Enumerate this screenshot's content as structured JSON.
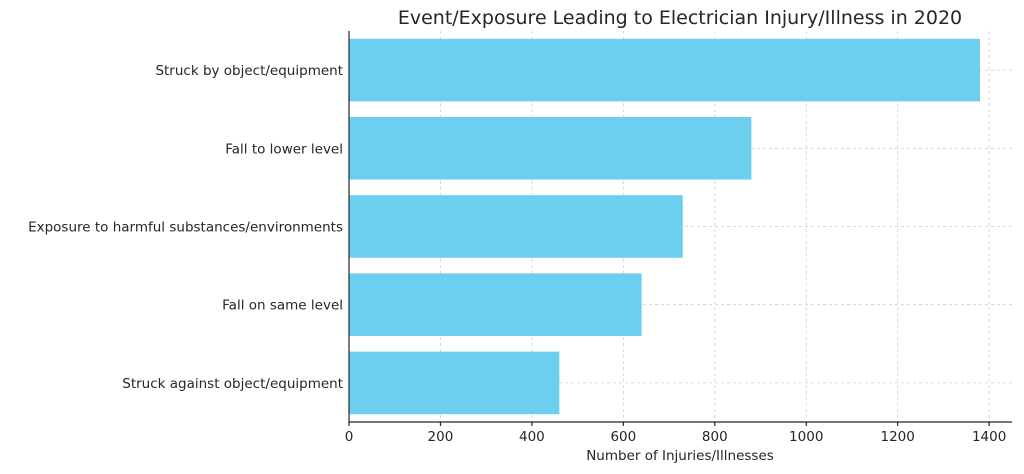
{
  "chart_data": {
    "type": "bar",
    "orientation": "horizontal",
    "title": "Event/Exposure Leading to Electrician Injury/Illness in 2020",
    "xlabel": "Number of Injuries/Illnesses",
    "ylabel": "",
    "categories": [
      "Struck by object/equipment",
      "Fall to lower level",
      "Exposure to harmful substances/environments",
      "Fall on same level",
      "Struck against object/equipment"
    ],
    "values": [
      1380,
      880,
      730,
      640,
      460
    ],
    "xlim": [
      0,
      1450
    ],
    "xticks": [
      0,
      200,
      400,
      600,
      800,
      1000,
      1200,
      1400
    ],
    "bar_color": "#6dcff0",
    "grid": true,
    "legend": "none"
  }
}
